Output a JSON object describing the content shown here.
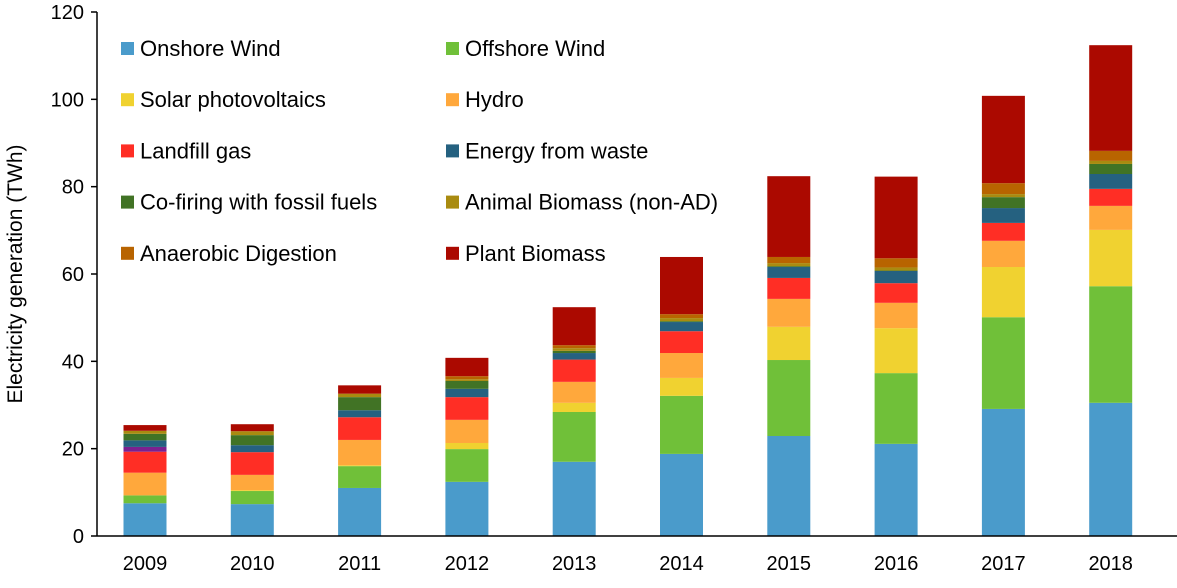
{
  "chart_data": {
    "type": "bar",
    "stacked": true,
    "title": "",
    "xlabel": "",
    "ylabel": "Electricity generation (TWh)",
    "ylim": [
      0,
      120
    ],
    "yticks": [
      0,
      20,
      40,
      60,
      80,
      100,
      120
    ],
    "grid": false,
    "legend_position": "top-left",
    "categories": [
      "2009",
      "2010",
      "2011",
      "2012",
      "2013",
      "2014",
      "2015",
      "2016",
      "2017",
      "2018"
    ],
    "series": [
      {
        "name": "Onshore Wind",
        "color": "#4a9bcb",
        "values": [
          7.5,
          7.3,
          11.0,
          12.4,
          17.0,
          18.8,
          22.9,
          21.1,
          29.1,
          30.5
        ]
      },
      {
        "name": "Offshore Wind",
        "color": "#70c039",
        "values": [
          1.8,
          3.0,
          5.0,
          7.5,
          11.4,
          13.3,
          17.4,
          16.2,
          21.0,
          26.7
        ]
      },
      {
        "name": "Solar photovoltaics",
        "color": "#f0d230",
        "values": [
          0.0,
          0.2,
          0.2,
          1.4,
          2.1,
          4.1,
          7.6,
          10.3,
          11.5,
          12.9
        ]
      },
      {
        "name": "Hydro",
        "color": "#ffa83c",
        "values": [
          5.2,
          3.5,
          5.8,
          5.3,
          4.8,
          5.7,
          6.4,
          5.8,
          6.0,
          5.5
        ]
      },
      {
        "name": "Landfill gas",
        "color": "#ff2e25",
        "values": [
          4.8,
          5.2,
          5.2,
          5.2,
          5.1,
          5.0,
          4.8,
          4.5,
          4.1,
          3.9
        ]
      },
      {
        "color": "#7b2090",
        "values": [
          1.1,
          0,
          0,
          0,
          0,
          0,
          0,
          0,
          0,
          0
        ]
      },
      {
        "name": "Energy from waste",
        "color": "#256180",
        "values": [
          1.5,
          1.6,
          1.6,
          1.9,
          1.5,
          2.1,
          2.5,
          2.8,
          3.4,
          3.4
        ]
      },
      {
        "name": "Co-firing with fossil fuels",
        "color": "#417325",
        "values": [
          1.5,
          2.3,
          3.0,
          1.8,
          0.5,
          0.2,
          0.2,
          0.1,
          2.5,
          2.3
        ]
      },
      {
        "name": "Animal Biomass (non-AD)",
        "color": "#a98b10",
        "values": [
          0.7,
          0.9,
          0.8,
          0.4,
          0.6,
          0.7,
          0.7,
          0.7,
          0.7,
          0.7
        ]
      },
      {
        "name": "Anaerobic Digestion",
        "color": "#b86400",
        "values": [
          0.0,
          0.0,
          0.0,
          0.7,
          0.7,
          0.9,
          1.4,
          2.1,
          2.5,
          2.3
        ]
      },
      {
        "name": "Plant Biomass",
        "color": "#ab0900",
        "values": [
          1.3,
          1.6,
          1.9,
          4.2,
          8.7,
          13.1,
          18.5,
          18.7,
          20.0,
          24.2
        ]
      }
    ],
    "legend": [
      "Onshore Wind",
      "Offshore Wind",
      "Solar photovoltaics",
      "Hydro",
      "Landfill gas",
      "Energy from waste",
      "Co-firing with fossil fuels",
      "Animal Biomass (non-AD)",
      "Anaerobic Digestion",
      "Plant Biomass"
    ]
  }
}
